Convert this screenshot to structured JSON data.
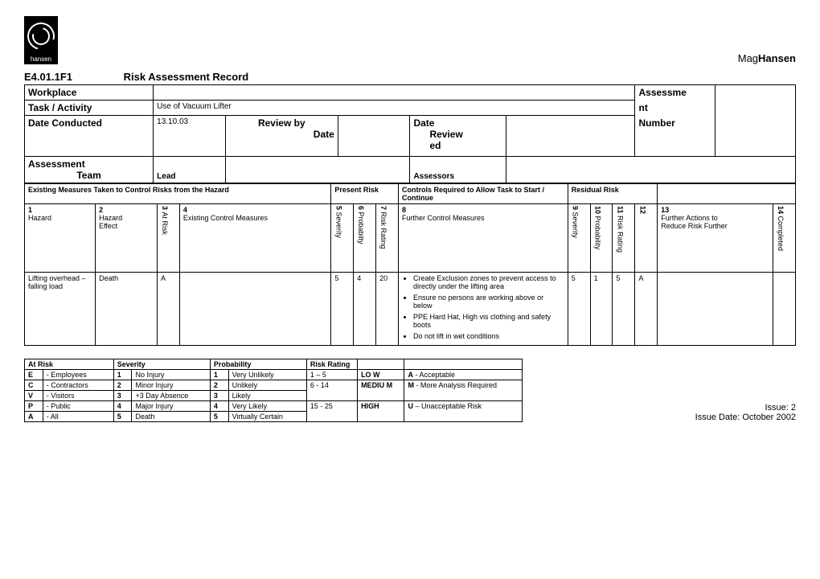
{
  "brand": {
    "logo_text": "hansen",
    "name_prefix": "Mag",
    "name_bold": "Hansen"
  },
  "doc": {
    "code": "E4.01.1F1",
    "title": "Risk Assessment Record"
  },
  "header": {
    "workplace_label": "Workplace",
    "assessment_label_a": "Assessme",
    "assessment_label_b": "nt",
    "assessment_label_c": "Number",
    "task_label": "Task / Activity",
    "task_value": "Use of Vacuum Lifter",
    "date_conducted_label": "Date Conducted",
    "date_conducted_value": "13.10.03",
    "review_by_label_a": "Review by",
    "review_by_label_b": "Date",
    "date_reviewed_label_a": "Date",
    "date_reviewed_label_b": "Review",
    "date_reviewed_label_c": "ed",
    "team_label_a": "Assessment",
    "team_label_b": "Team",
    "lead_label": "Lead",
    "assessors_label": "Assessors"
  },
  "section": {
    "existing_measures": "Existing Measures Taken to Control Risks from the Hazard",
    "present_risk": "Present Risk",
    "controls_required": "Controls Required to Allow Task to Start / Continue",
    "residual_risk": "Residual Risk"
  },
  "columns": {
    "c1n": "1",
    "c1": "Hazard",
    "c2n": "2",
    "c2a": "Hazard",
    "c2b": "Effect",
    "c3n": "3",
    "c3": "At Risk",
    "c4n": "4",
    "c4": "Existing Control Measures",
    "c5n": "5",
    "c5": "Severity",
    "c6n": "6",
    "c6": "Probabilty",
    "c7n": "7",
    "c7": "Risk Rating",
    "c8n": "8",
    "c8": "Further Control Measures",
    "c9n": "9",
    "c9": "Severity",
    "c10n": "10",
    "c10": "Probability",
    "c11n": "11",
    "c11": "Risk Rating",
    "c12n": "12",
    "c12": "",
    "c13n": "13",
    "c13a": "Further Actions to",
    "c13b": "Reduce Risk Further",
    "c14n": "14",
    "c14": "Completed"
  },
  "row": {
    "hazard": "Lifting overhead – falling load",
    "effect": "Death",
    "atrisk": "A",
    "existing": "",
    "sev": "5",
    "prob": "4",
    "rating": "20",
    "bullets": [
      "Create Exclusion zones to prevent access to directly under the lifting area",
      "Ensure no persons are working above or below",
      "PPE Hard Hat, High vis clothing and safety boots",
      "Do not lift in wet conditions"
    ],
    "rsev": "5",
    "rprob": "1",
    "rrating": "5",
    "r12": "A",
    "further": "",
    "completed": ""
  },
  "legend": {
    "atrisk_h": "At Risk",
    "severity_h": "Severity",
    "prob_h": "Probability",
    "rating_h": "Risk Rating",
    "e_code": "E",
    "e_label": "- Employees",
    "c_code": "C",
    "c_label": "- Contractors",
    "v_code": "V",
    "v_label": "- Visitors",
    "p_code": "P",
    "p_label": "- Public",
    "a_code": "A",
    "a_label": "- All",
    "s1n": "1",
    "s1": "No Injury",
    "s2n": "2",
    "s2": "Minor Injury",
    "s3n": "3",
    "s3": "+3 Day Absence",
    "s4n": "4",
    "s4": "Major Injury",
    "s5n": "5",
    "s5": "Death",
    "p1n": "1",
    "p1": "Very Unlikely",
    "p2n": "2",
    "p2": "Unlikely",
    "p3n": "3",
    "p3": "Likely",
    "p4n": "4",
    "p4": "Very Likely",
    "p5n": "5",
    "p5": "Virtually Certain",
    "r1": "1 – 5",
    "r1c": "LO W",
    "r1d_code": "A",
    "r1d": " - Acceptable",
    "r2": "6 - 14",
    "r2c": "MEDIU M",
    "r2d_code": "M",
    "r2d": " - More Analysis Required",
    "r3": "15 - 25",
    "r3c": "HIGH",
    "r3d_code": "U",
    "r3d": " – Unacceptable Risk"
  },
  "issue": {
    "line1": "Issue: 2",
    "line2": "Issue Date: October 2002"
  }
}
